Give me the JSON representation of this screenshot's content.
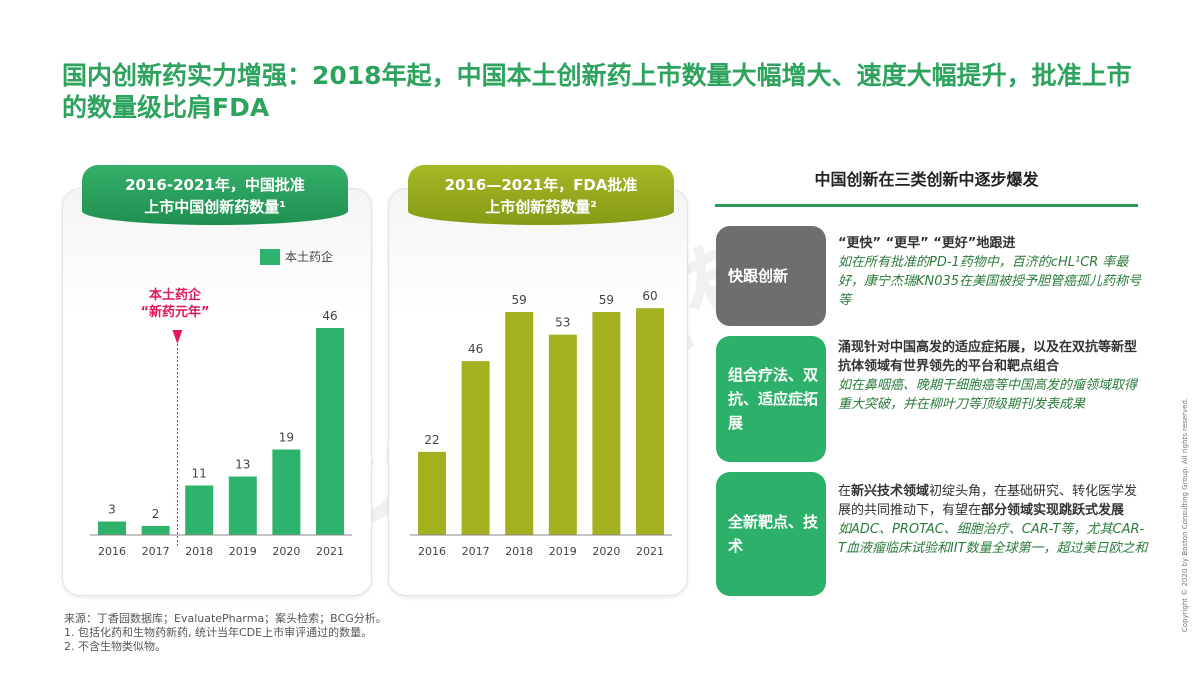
{
  "title": "国内创新药实力增强：2018年起，中国本土创新药上市数量大幅增大、速度大幅提升，批准上市的数量级比肩FDA",
  "watermark": "BCG版权所有",
  "chart_data": [
    {
      "type": "bar",
      "title_line1": "2016-2021年，中国批准",
      "title_line2": "上市中国创新药数量¹",
      "categories": [
        "2016",
        "2017",
        "2018",
        "2019",
        "2020",
        "2021"
      ],
      "series": [
        {
          "name": "本土药企",
          "values": [
            3,
            2,
            11,
            13,
            19,
            46
          ],
          "color": "#2db36b"
        }
      ],
      "annotation_line1": "本土药企",
      "annotation_line2": "“新药元年”",
      "annotation_color": "#e0195a",
      "header_color": "#2a9e5c"
    },
    {
      "type": "bar",
      "title_line1": "2016—2021年，FDA批准",
      "title_line2": "上市创新药数量²",
      "categories": [
        "2016",
        "2017",
        "2018",
        "2019",
        "2020",
        "2021"
      ],
      "series": [
        {
          "values": [
            22,
            46,
            59,
            53,
            59,
            60
          ],
          "color": "#a3b01f"
        }
      ],
      "header_color": "#95a81c"
    }
  ],
  "right": {
    "heading": "中国创新在三类创新中逐步爆发",
    "items": [
      {
        "label": "快跟创新",
        "color": "#6e6e6e",
        "bold": "“更快” “更早” “更好”地跟进",
        "italic": "如在所有批准的PD-1药物中，百济的cHL¹CR 率最好，康宁杰瑞KN035在美国被授予胆管癌孤儿药称号等"
      },
      {
        "label": "组合疗法、双抗、适应症拓展",
        "color": "#2db06a",
        "bold": "涌现针对中国高发的适应症拓展，以及在双抗等新型抗体领域有世界领先的平台和靶点组合",
        "italic": "如在鼻咽癌、晚期干细胞癌等中国高发的瘤领域取得重大突破，并在柳叶刀等顶级期刊发表成果"
      },
      {
        "label": "全新靶点、技术",
        "color": "#2db06a",
        "text_a": "在",
        "bold_a": "新兴技术领域",
        "text_b": "初绽头角，在基础研究、转化医学发展的共同推动下，有望在",
        "bold_b": "部分领域实现跳跃式发展",
        "italic": "如ADC、PROTAC、细胞治疗、CAR-T等，尤其CAR-T血液瘤临床试验和IIT数量全球第一，超过美日欧之和"
      }
    ]
  },
  "footnotes": [
    "来源：丁香园数据库；EvaluatePharma；案头检索；BCG分析。",
    "1. 包括化药和生物药新药, 统计当年CDE上市审评通过的数量。",
    "2. 不含生物类似物。"
  ],
  "copyright": "Copyright © 2020 by Boston Consulting Group. All rights reserved."
}
